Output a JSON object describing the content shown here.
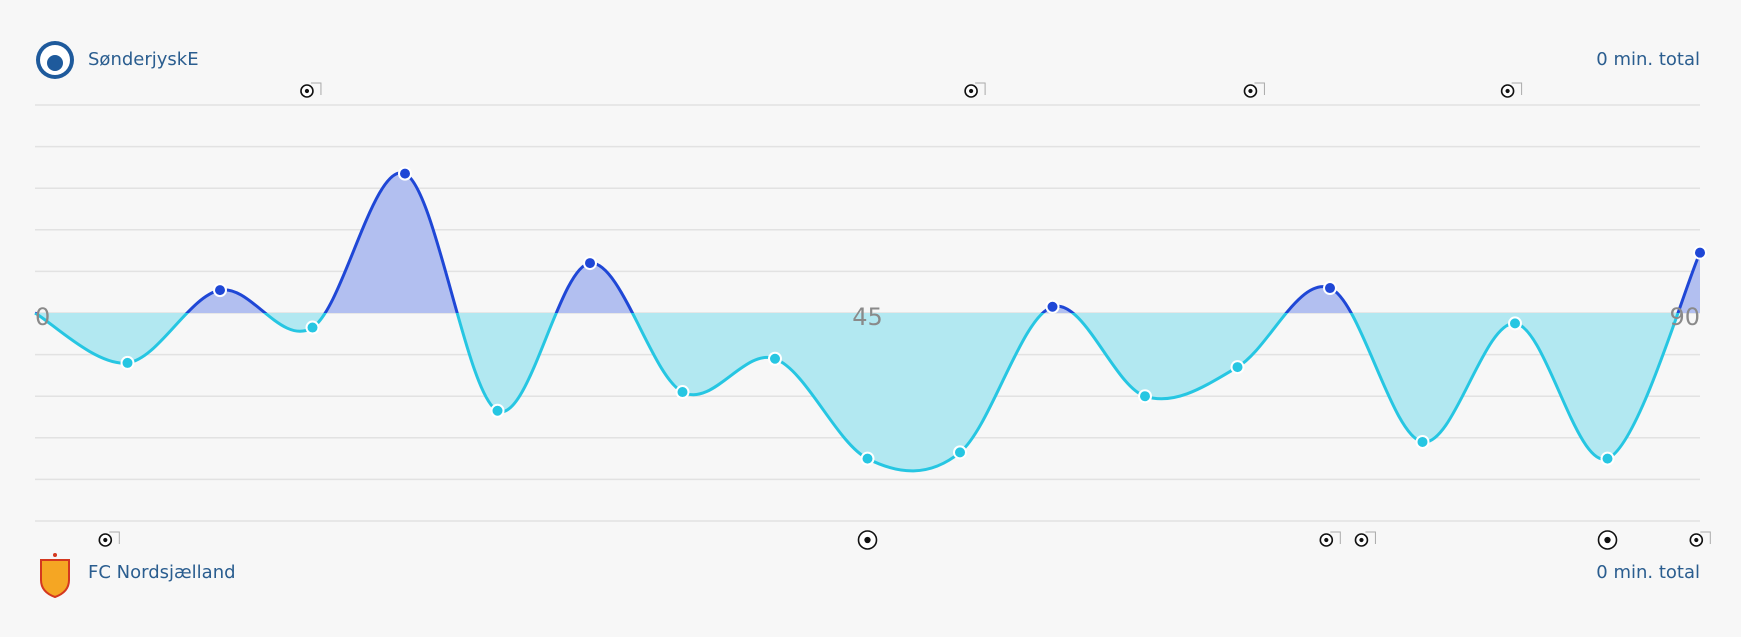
{
  "chart_data": {
    "type": "momentum",
    "home_team": "SønderjyskE",
    "away_team": "FC Nordsjælland",
    "home_total": "0 min. total",
    "away_total": "0 min. total",
    "x": [
      0,
      5,
      10,
      15,
      20,
      25,
      30,
      35,
      40,
      45,
      50,
      55,
      60,
      65,
      70,
      75,
      80,
      85,
      90
    ],
    "values": [
      0,
      -1.2,
      0.55,
      -0.35,
      3.35,
      -2.35,
      1.2,
      -1.9,
      -1.1,
      -3.5,
      -3.35,
      0.15,
      -2.0,
      -1.3,
      0.6,
      -3.1,
      -0.25,
      -3.5,
      1.45
    ],
    "positive_color": "#1f47d6",
    "negative_color": "#26c6e2",
    "positive_fill": "#b2bff0",
    "negative_fill": "#b2e8f1",
    "xlim": [
      0,
      90
    ],
    "xticks": [
      0,
      45,
      90
    ],
    "ylim": [
      -5,
      5
    ],
    "yticks": [
      -5,
      -4,
      -3,
      -2,
      -1,
      0,
      1,
      2,
      3,
      4,
      5
    ],
    "grid": true,
    "home_shots": [
      14.7,
      50.6,
      65.7,
      79.6
    ],
    "away_shots": [
      3.8,
      69.8,
      71.7,
      89.8
    ],
    "away_goals": [
      45,
      85
    ]
  }
}
